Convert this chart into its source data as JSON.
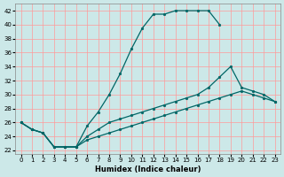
{
  "xlabel": "Humidex (Indice chaleur)",
  "bg_color": "#cce8e8",
  "grid_color_v": "#ff9999",
  "grid_color_h": "#ff9999",
  "line_color": "#006666",
  "xlim": [
    -0.5,
    23.5
  ],
  "ylim": [
    21.5,
    43
  ],
  "xticks": [
    0,
    1,
    2,
    3,
    4,
    5,
    6,
    7,
    8,
    9,
    10,
    11,
    12,
    13,
    14,
    15,
    16,
    17,
    18,
    19,
    20,
    21,
    22,
    23
  ],
  "yticks": [
    22,
    24,
    26,
    28,
    30,
    32,
    34,
    36,
    38,
    40,
    42
  ],
  "line1_x": [
    0,
    1,
    2,
    3,
    4,
    5,
    6,
    7,
    8,
    9,
    10,
    11,
    12,
    13,
    14,
    15,
    16,
    17,
    18
  ],
  "line1_y": [
    26,
    25,
    24.5,
    22.5,
    22.5,
    22.5,
    25.5,
    27.5,
    30,
    33,
    36.5,
    39.5,
    41.5,
    41.5,
    42,
    42,
    42,
    42,
    40
  ],
  "line2_x": [
    0,
    1,
    2,
    3,
    4,
    5,
    6,
    7,
    8,
    9,
    10,
    11,
    12,
    13,
    14,
    15,
    16,
    17,
    18,
    19,
    20,
    21,
    22,
    23
  ],
  "line2_y": [
    26,
    25,
    24.5,
    22.5,
    22.5,
    22.5,
    24,
    25,
    26,
    26.5,
    27,
    27.5,
    28,
    28.5,
    29,
    29.5,
    30,
    31,
    32.5,
    34,
    31,
    30.5,
    30,
    29
  ],
  "line3_x": [
    0,
    1,
    2,
    3,
    4,
    5,
    6,
    7,
    8,
    9,
    10,
    11,
    12,
    13,
    14,
    15,
    16,
    17,
    18,
    19,
    20,
    21,
    22,
    23
  ],
  "line3_y": [
    26,
    25,
    24.5,
    22.5,
    22.5,
    22.5,
    23.5,
    24,
    24.5,
    25,
    25.5,
    26,
    26.5,
    27,
    27.5,
    28,
    28.5,
    29,
    29.5,
    30,
    30.5,
    30,
    29.5,
    29
  ]
}
